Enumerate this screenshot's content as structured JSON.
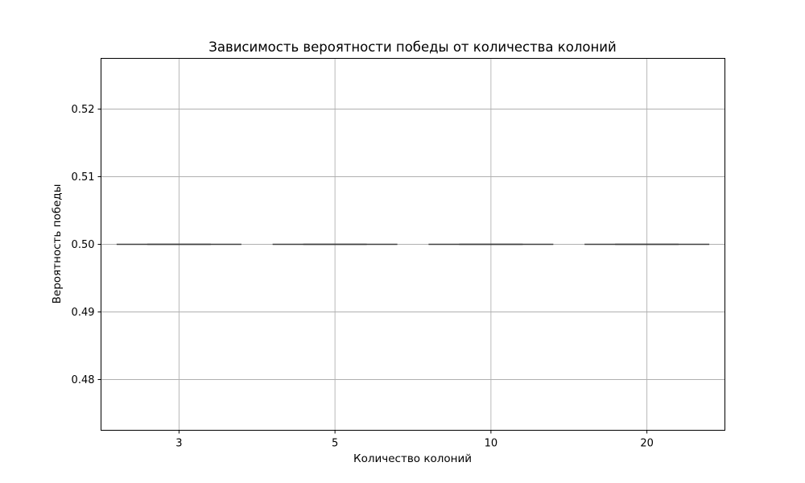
{
  "chart_data": {
    "type": "box",
    "title": "Зависимость вероятности победы от количества колоний",
    "xlabel": "Количество колоний",
    "ylabel": "Вероятность победы",
    "categories": [
      "3",
      "5",
      "10",
      "20"
    ],
    "ylim": [
      0.4725,
      0.5275
    ],
    "yticks": [
      0.48,
      0.49,
      0.5,
      0.51,
      0.52
    ],
    "ytick_labels": [
      "0.48",
      "0.49",
      "0.50",
      "0.51",
      "0.52"
    ],
    "grid": true,
    "boxes": [
      {
        "category": "3",
        "min": 0.5,
        "q1": 0.5,
        "median": 0.5,
        "q3": 0.5,
        "max": 0.5
      },
      {
        "category": "5",
        "min": 0.5,
        "q1": 0.5,
        "median": 0.5,
        "q3": 0.5,
        "max": 0.5
      },
      {
        "category": "10",
        "min": 0.5,
        "q1": 0.5,
        "median": 0.5,
        "q3": 0.5,
        "max": 0.5
      },
      {
        "category": "20",
        "min": 0.5,
        "q1": 0.5,
        "median": 0.5,
        "q3": 0.5,
        "max": 0.5
      }
    ],
    "colors": {
      "box_edge": "#3f3f3f",
      "grid": "#b0b0b0"
    }
  }
}
